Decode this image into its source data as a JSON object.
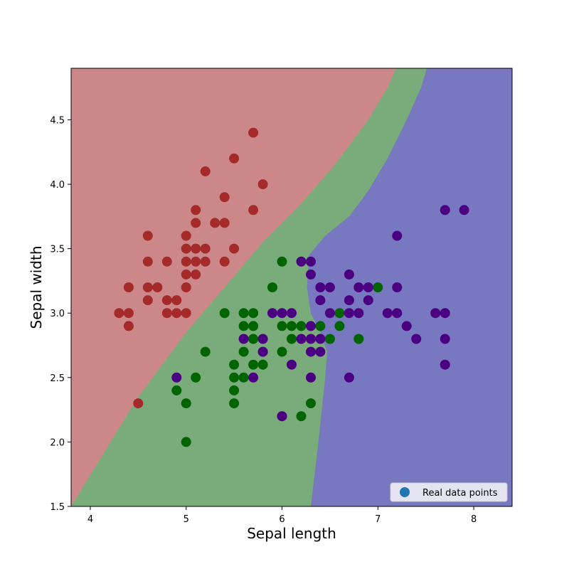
{
  "chart_data": {
    "type": "scatter",
    "xlabel": "Sepal length",
    "ylabel": "Sepal width",
    "xlim": [
      3.8,
      8.4
    ],
    "ylim": [
      1.5,
      4.9
    ],
    "xticks": [
      4,
      5,
      6,
      7,
      8
    ],
    "yticks": [
      1.5,
      2.0,
      2.5,
      3.0,
      3.5,
      4.0,
      4.5
    ],
    "ytick_labels": [
      "1.5",
      "2.0",
      "2.5",
      "3.0",
      "3.5",
      "4.0",
      "4.5"
    ],
    "grid": false,
    "legend": {
      "position": "bottom-right",
      "entries": [
        "Real data points"
      ],
      "marker_color": "#1f77b4"
    },
    "decision_regions": [
      {
        "class": 0,
        "color": "#cc8888"
      },
      {
        "class": 1,
        "color": "#7aab7a"
      },
      {
        "class": 2,
        "color": "#7878c0"
      }
    ],
    "series": [
      {
        "class": 0,
        "color": "#a52a2a",
        "points": [
          [
            4.3,
            3.0
          ],
          [
            4.4,
            3.0
          ],
          [
            4.4,
            2.9
          ],
          [
            4.4,
            3.2
          ],
          [
            4.5,
            2.3
          ],
          [
            4.6,
            3.6
          ],
          [
            4.6,
            3.4
          ],
          [
            4.6,
            3.2
          ],
          [
            4.6,
            3.1
          ],
          [
            4.7,
            3.2
          ],
          [
            4.8,
            3.4
          ],
          [
            4.8,
            3.1
          ],
          [
            4.8,
            3.0
          ],
          [
            4.9,
            3.1
          ],
          [
            4.9,
            3.0
          ],
          [
            5.0,
            3.6
          ],
          [
            5.0,
            3.5
          ],
          [
            5.0,
            3.4
          ],
          [
            5.0,
            3.3
          ],
          [
            5.0,
            3.2
          ],
          [
            5.0,
            3.0
          ],
          [
            5.1,
            3.8
          ],
          [
            5.1,
            3.7
          ],
          [
            5.1,
            3.5
          ],
          [
            5.1,
            3.4
          ],
          [
            5.1,
            3.3
          ],
          [
            5.2,
            4.1
          ],
          [
            5.2,
            3.5
          ],
          [
            5.2,
            3.4
          ],
          [
            5.3,
            3.7
          ],
          [
            5.4,
            3.9
          ],
          [
            5.4,
            3.7
          ],
          [
            5.4,
            3.4
          ],
          [
            5.5,
            4.2
          ],
          [
            5.5,
            3.5
          ],
          [
            5.7,
            4.4
          ],
          [
            5.7,
            3.8
          ],
          [
            5.8,
            4.0
          ]
        ]
      },
      {
        "class": 1,
        "color": "#006400",
        "points": [
          [
            4.9,
            2.4
          ],
          [
            5.0,
            2.3
          ],
          [
            5.0,
            2.0
          ],
          [
            5.1,
            2.5
          ],
          [
            5.2,
            2.7
          ],
          [
            5.4,
            3.0
          ],
          [
            5.5,
            2.6
          ],
          [
            5.5,
            2.5
          ],
          [
            5.5,
            2.4
          ],
          [
            5.5,
            2.3
          ],
          [
            5.6,
            3.0
          ],
          [
            5.6,
            2.9
          ],
          [
            5.6,
            2.7
          ],
          [
            5.6,
            2.5
          ],
          [
            5.7,
            3.0
          ],
          [
            5.7,
            2.9
          ],
          [
            5.7,
            2.8
          ],
          [
            5.7,
            2.6
          ],
          [
            5.8,
            2.7
          ],
          [
            5.8,
            2.6
          ],
          [
            5.9,
            3.2
          ],
          [
            6.0,
            3.4
          ],
          [
            6.0,
            2.9
          ],
          [
            6.0,
            2.7
          ],
          [
            6.0,
            2.2
          ],
          [
            6.1,
            2.9
          ],
          [
            6.1,
            2.8
          ],
          [
            6.2,
            2.9
          ],
          [
            6.2,
            2.2
          ],
          [
            6.3,
            2.3
          ],
          [
            6.4,
            2.9
          ],
          [
            6.5,
            2.8
          ],
          [
            6.6,
            3.0
          ],
          [
            6.6,
            2.9
          ],
          [
            6.8,
            2.8
          ],
          [
            7.0,
            3.2
          ]
        ]
      },
      {
        "class": 2,
        "color": "#4b0082",
        "points": [
          [
            4.9,
            2.5
          ],
          [
            5.6,
            2.8
          ],
          [
            5.7,
            2.5
          ],
          [
            5.8,
            2.8
          ],
          [
            5.8,
            2.7
          ],
          [
            5.9,
            3.0
          ],
          [
            6.0,
            3.0
          ],
          [
            6.0,
            2.2
          ],
          [
            6.1,
            3.0
          ],
          [
            6.1,
            2.6
          ],
          [
            6.2,
            3.4
          ],
          [
            6.2,
            2.8
          ],
          [
            6.3,
            3.4
          ],
          [
            6.3,
            3.3
          ],
          [
            6.3,
            2.9
          ],
          [
            6.3,
            2.8
          ],
          [
            6.3,
            2.7
          ],
          [
            6.3,
            2.5
          ],
          [
            6.4,
            3.2
          ],
          [
            6.4,
            3.1
          ],
          [
            6.4,
            2.8
          ],
          [
            6.4,
            2.7
          ],
          [
            6.5,
            3.2
          ],
          [
            6.5,
            3.0
          ],
          [
            6.7,
            3.3
          ],
          [
            6.7,
            3.1
          ],
          [
            6.7,
            3.0
          ],
          [
            6.7,
            2.5
          ],
          [
            6.8,
            3.2
          ],
          [
            6.8,
            3.0
          ],
          [
            6.9,
            3.2
          ],
          [
            6.9,
            3.1
          ],
          [
            7.1,
            3.0
          ],
          [
            7.2,
            3.6
          ],
          [
            7.2,
            3.2
          ],
          [
            7.2,
            3.0
          ],
          [
            7.3,
            2.9
          ],
          [
            7.4,
            2.8
          ],
          [
            7.6,
            3.0
          ],
          [
            7.7,
            3.8
          ],
          [
            7.7,
            3.0
          ],
          [
            7.7,
            2.8
          ],
          [
            7.7,
            2.6
          ],
          [
            7.9,
            3.8
          ]
        ]
      }
    ]
  }
}
